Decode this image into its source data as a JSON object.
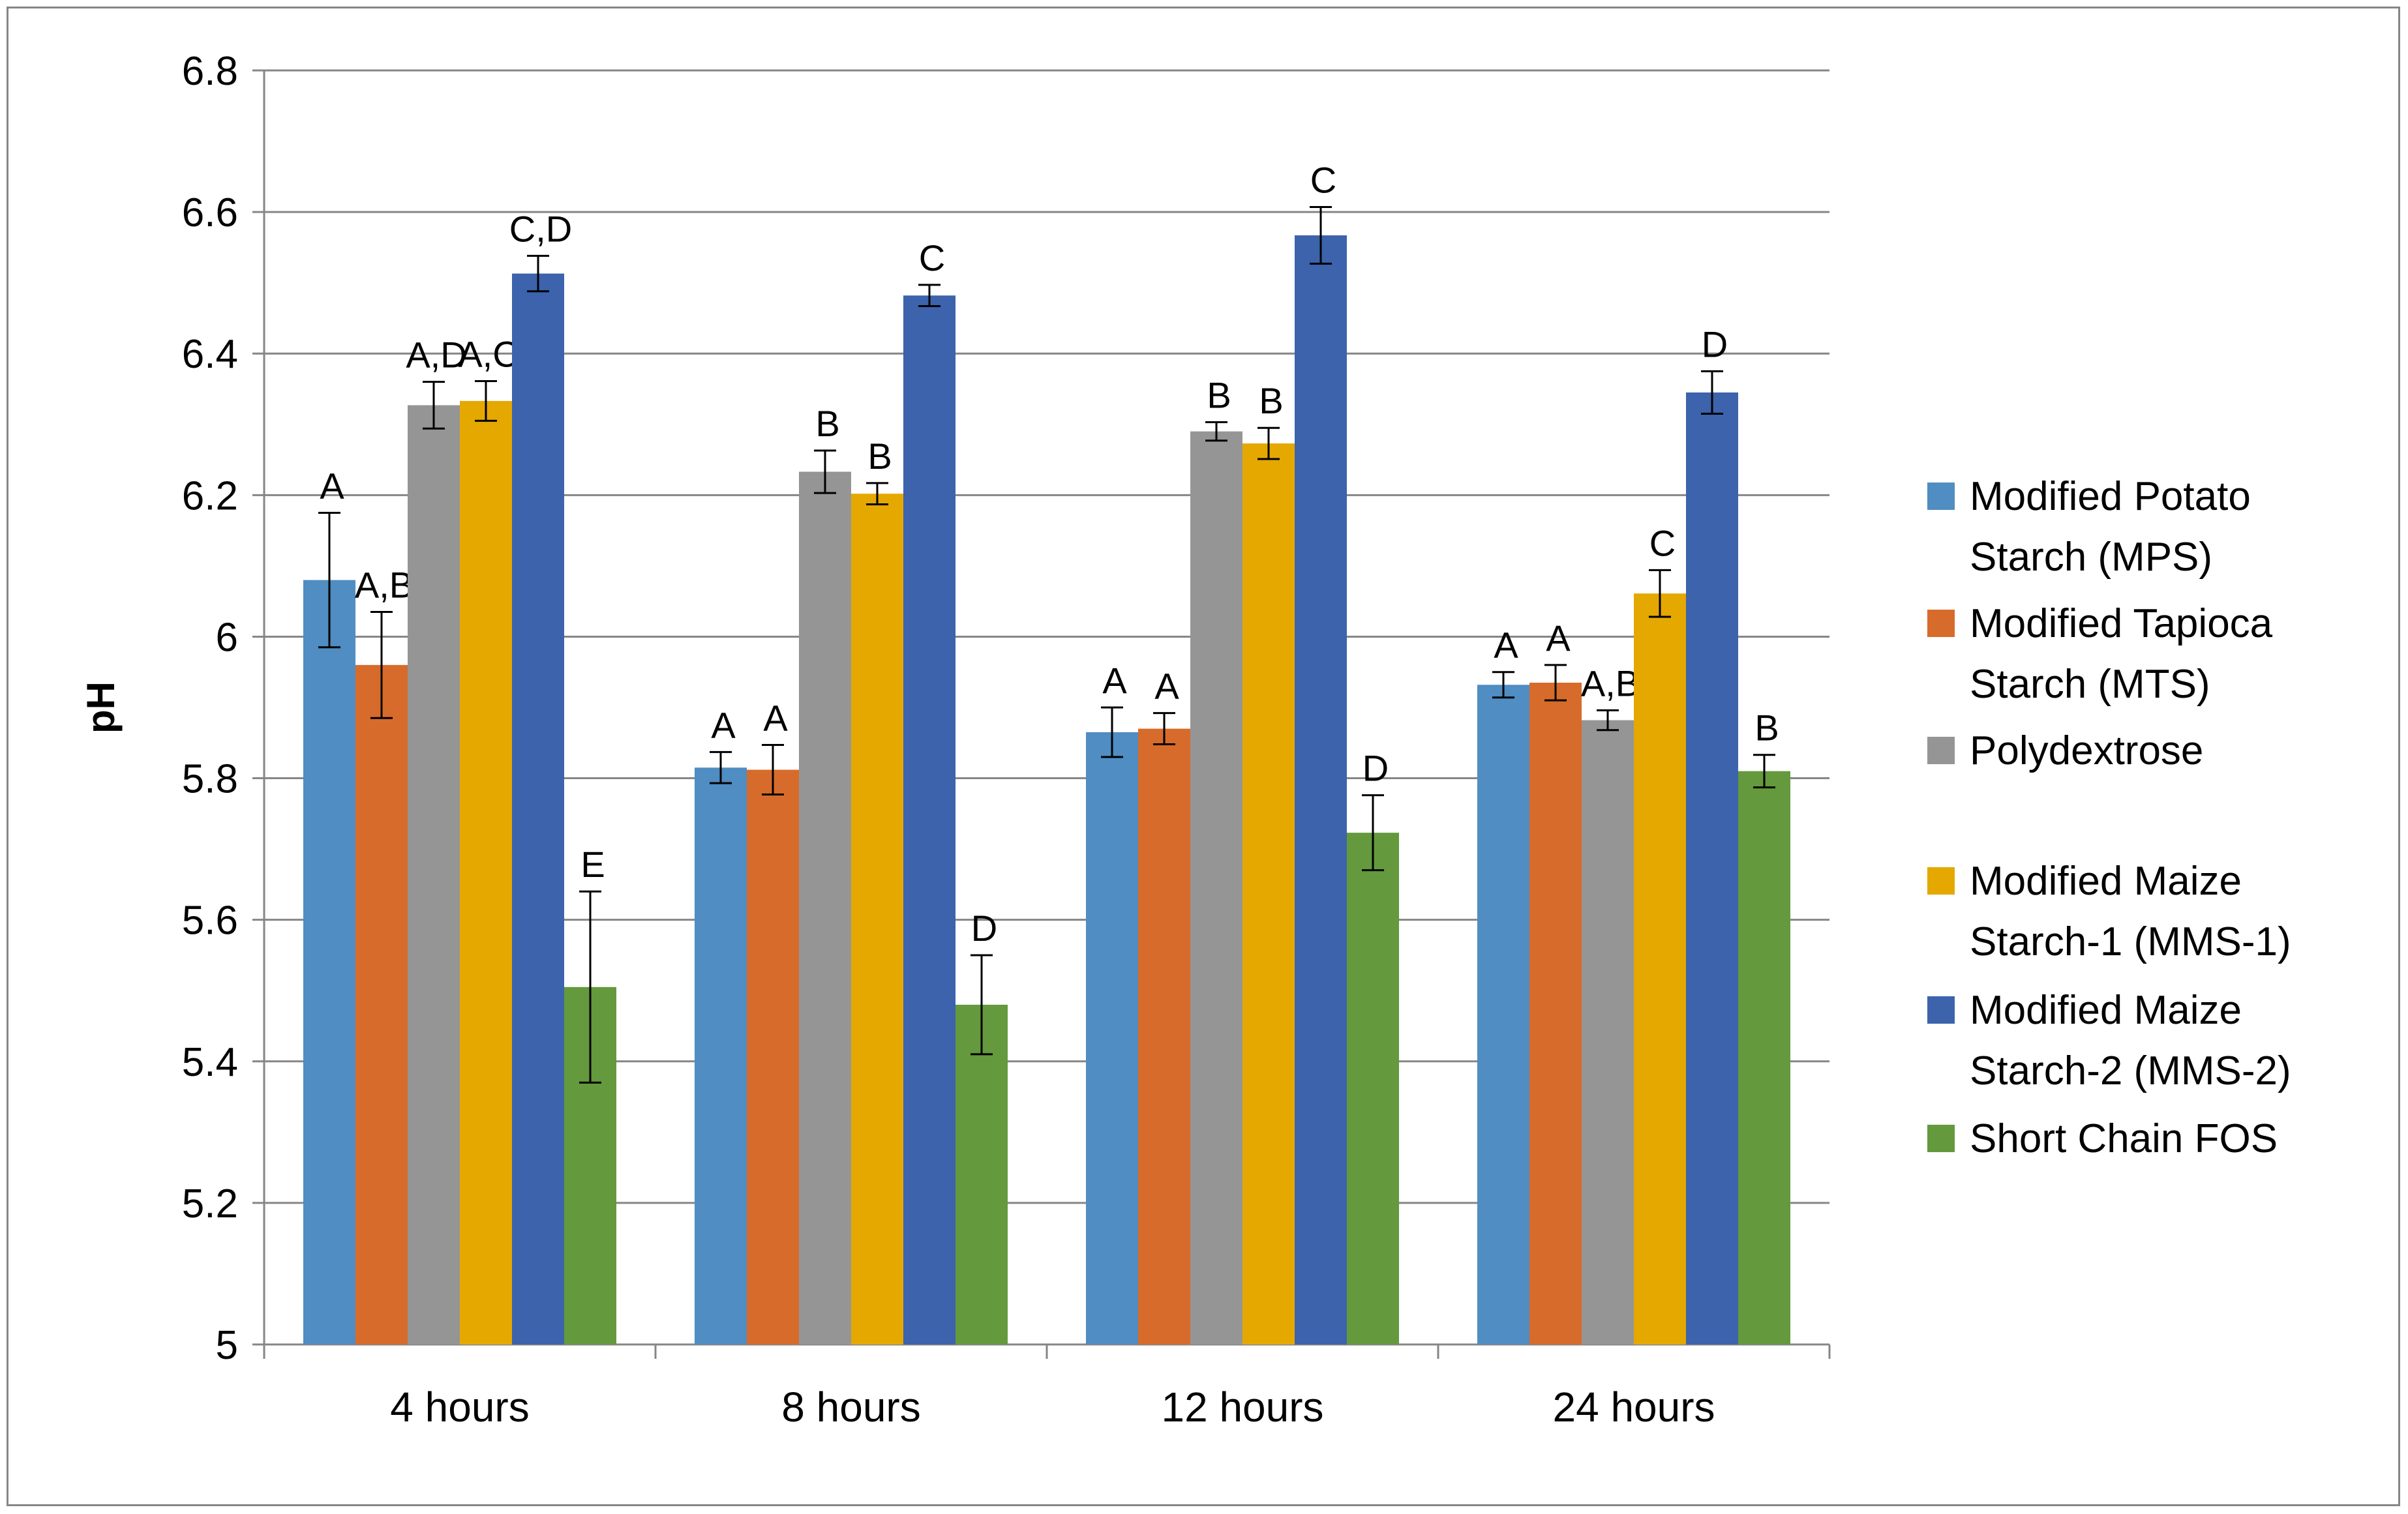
{
  "chart_data": {
    "type": "bar",
    "title": "",
    "xlabel": "",
    "ylabel": "pH",
    "ylim": [
      5,
      6.8
    ],
    "yticks": [
      "5",
      "5.2",
      "5.4",
      "5.6",
      "5.8",
      "6",
      "6.2",
      "6.4",
      "6.6",
      "6.8"
    ],
    "grid": "horizontal",
    "legend_position": "right",
    "categories": [
      "4 hours",
      "8 hours",
      "12 hours",
      "24 hours"
    ],
    "series": [
      {
        "name": "Modified Potato Starch (MPS)",
        "legend_lines": [
          "Modified Potato",
          "Starch (MPS)"
        ],
        "color": "#4F8DC2",
        "values": [
          6.08,
          5.815,
          5.865,
          5.932
        ],
        "errors": [
          0.095,
          0.022,
          0.035,
          0.018
        ],
        "labels": [
          "A",
          "A",
          "A",
          "A"
        ]
      },
      {
        "name": "Modified Tapioca Starch (MTS)",
        "legend_lines": [
          "Modified Tapioca",
          "Starch (MTS)"
        ],
        "color": "#D76B2B",
        "values": [
          5.96,
          5.812,
          5.87,
          5.935
        ],
        "errors": [
          0.075,
          0.035,
          0.022,
          0.025
        ],
        "labels": [
          "A,B",
          "A",
          "A",
          "A"
        ]
      },
      {
        "name": "Polydextrose",
        "legend_lines": [
          "Polydextrose"
        ],
        "color": "#959595",
        "values": [
          6.327,
          6.233,
          6.29,
          5.882
        ],
        "errors": [
          0.033,
          0.03,
          0.013,
          0.014
        ],
        "labels": [
          "A,D",
          "B",
          "B",
          "A,B"
        ]
      },
      {
        "name": "Modified Maize Starch-1 (MMS-1)",
        "legend_lines": [
          "Modified Maize",
          "Starch-1 (MMS-1)"
        ],
        "color": "#E5A800",
        "values": [
          6.333,
          6.202,
          6.273,
          6.061
        ],
        "errors": [
          0.028,
          0.015,
          0.022,
          0.033
        ],
        "labels": [
          "A,C",
          "B",
          "B",
          "C"
        ]
      },
      {
        "name": "Modified Maize Starch-2 (MMS-2)",
        "legend_lines": [
          "Modified Maize",
          "Starch-2 (MMS-2)"
        ],
        "color": "#3C63AC",
        "values": [
          6.513,
          6.482,
          6.567,
          6.345
        ],
        "errors": [
          0.025,
          0.015,
          0.04,
          0.03
        ],
        "labels": [
          "C,D",
          "C",
          "C",
          "D"
        ]
      },
      {
        "name": "Short Chain FOS",
        "legend_lines": [
          "Short Chain FOS"
        ],
        "color": "#64993D",
        "values": [
          5.505,
          5.48,
          5.723,
          5.81
        ],
        "errors": [
          0.135,
          0.07,
          0.053,
          0.023
        ],
        "labels": [
          "E",
          "D",
          "D",
          "B"
        ]
      }
    ]
  }
}
